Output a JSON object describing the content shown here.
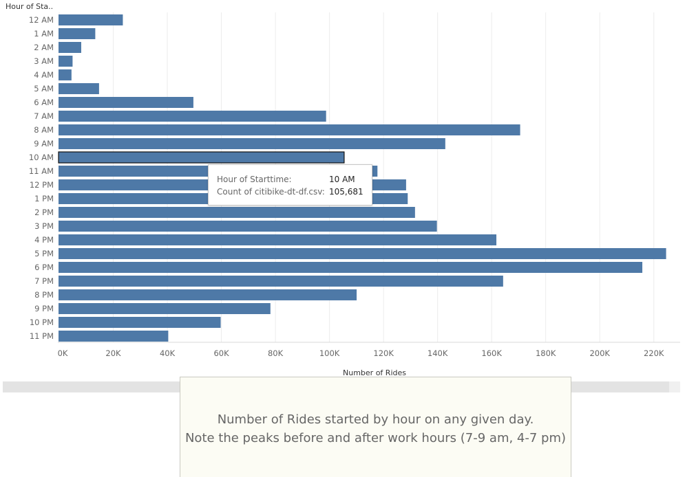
{
  "chart_data": {
    "type": "bar",
    "orientation": "horizontal",
    "title": "",
    "ylabel": "Hour of Sta..",
    "xlabel": "Number of Rides",
    "categories": [
      "12 AM",
      "1 AM",
      "2 AM",
      "3 AM",
      "4 AM",
      "5 AM",
      "6 AM",
      "7 AM",
      "8 AM",
      "9 AM",
      "10 AM",
      "11 AM",
      "12 PM",
      "1 PM",
      "2 PM",
      "3 PM",
      "4 PM",
      "5 PM",
      "6 PM",
      "7 PM",
      "8 PM",
      "9 PM",
      "10 PM",
      "11 PM"
    ],
    "values": [
      23800,
      13600,
      8400,
      5200,
      4800,
      15000,
      49900,
      99000,
      170800,
      143100,
      105681,
      118000,
      128600,
      129200,
      131900,
      140000,
      162000,
      224800,
      216000,
      164500,
      110300,
      78400,
      60000,
      40600
    ],
    "xlim": [
      0,
      230000
    ],
    "xticks": [
      0,
      20000,
      40000,
      60000,
      80000,
      100000,
      120000,
      140000,
      160000,
      180000,
      200000,
      220000
    ],
    "xtick_labels": [
      "0K",
      "20K",
      "40K",
      "60K",
      "80K",
      "100K",
      "120K",
      "140K",
      "160K",
      "180K",
      "200K",
      "220K"
    ],
    "grid": true,
    "bar_color": "#4e79a7",
    "selected_category": "10 AM"
  },
  "tooltip": {
    "field1_label": "Hour of Starttime:",
    "field1_value": "10 AM",
    "field2_label": "Count of citibike-dt-df.csv:",
    "field2_value": "105,681"
  },
  "caption": {
    "line1": "Number of Rides started by hour on any given day.",
    "line2": "Note the peaks before and after work hours (7-9 am, 4-7 pm)"
  }
}
